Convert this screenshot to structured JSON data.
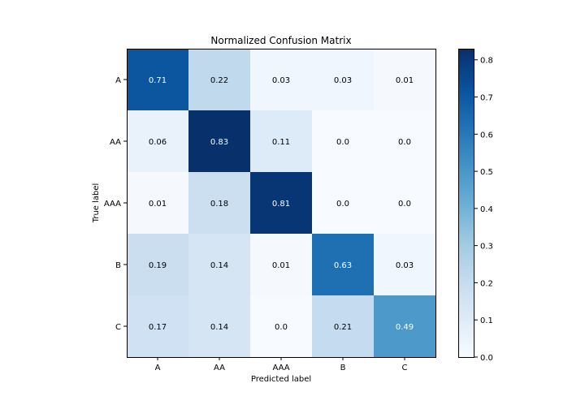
{
  "chart_data": {
    "type": "heatmap",
    "title": "Normalized Confusion Matrix",
    "xlabel": "Predicted label",
    "ylabel": "True label",
    "x_categories": [
      "A",
      "AA",
      "AAA",
      "B",
      "C"
    ],
    "y_categories": [
      "A",
      "AA",
      "AAA",
      "B",
      "C"
    ],
    "values": [
      [
        0.71,
        0.22,
        0.03,
        0.03,
        0.01
      ],
      [
        0.06,
        0.83,
        0.11,
        0.0,
        0.0
      ],
      [
        0.01,
        0.18,
        0.81,
        0.0,
        0.0
      ],
      [
        0.19,
        0.14,
        0.01,
        0.63,
        0.03
      ],
      [
        0.17,
        0.14,
        0.0,
        0.21,
        0.49
      ]
    ],
    "cell_labels": [
      [
        "0.71",
        "0.22",
        "0.03",
        "0.03",
        "0.01"
      ],
      [
        "0.06",
        "0.83",
        "0.11",
        "0.0",
        "0.0"
      ],
      [
        "0.01",
        "0.18",
        "0.81",
        "0.0",
        "0.0"
      ],
      [
        "0.19",
        "0.14",
        "0.01",
        "0.63",
        "0.03"
      ],
      [
        "0.17",
        "0.14",
        "0.0",
        "0.21",
        "0.49"
      ]
    ],
    "colormap": "Blues",
    "colorbar": {
      "range": [
        0.0,
        0.83
      ],
      "ticks": [
        0.0,
        0.1,
        0.2,
        0.3,
        0.4,
        0.5,
        0.6,
        0.7,
        0.8
      ],
      "tick_labels": [
        "0.0",
        "0.1",
        "0.2",
        "0.3",
        "0.4",
        "0.5",
        "0.6",
        "0.7",
        "0.8"
      ]
    },
    "grid": false
  }
}
